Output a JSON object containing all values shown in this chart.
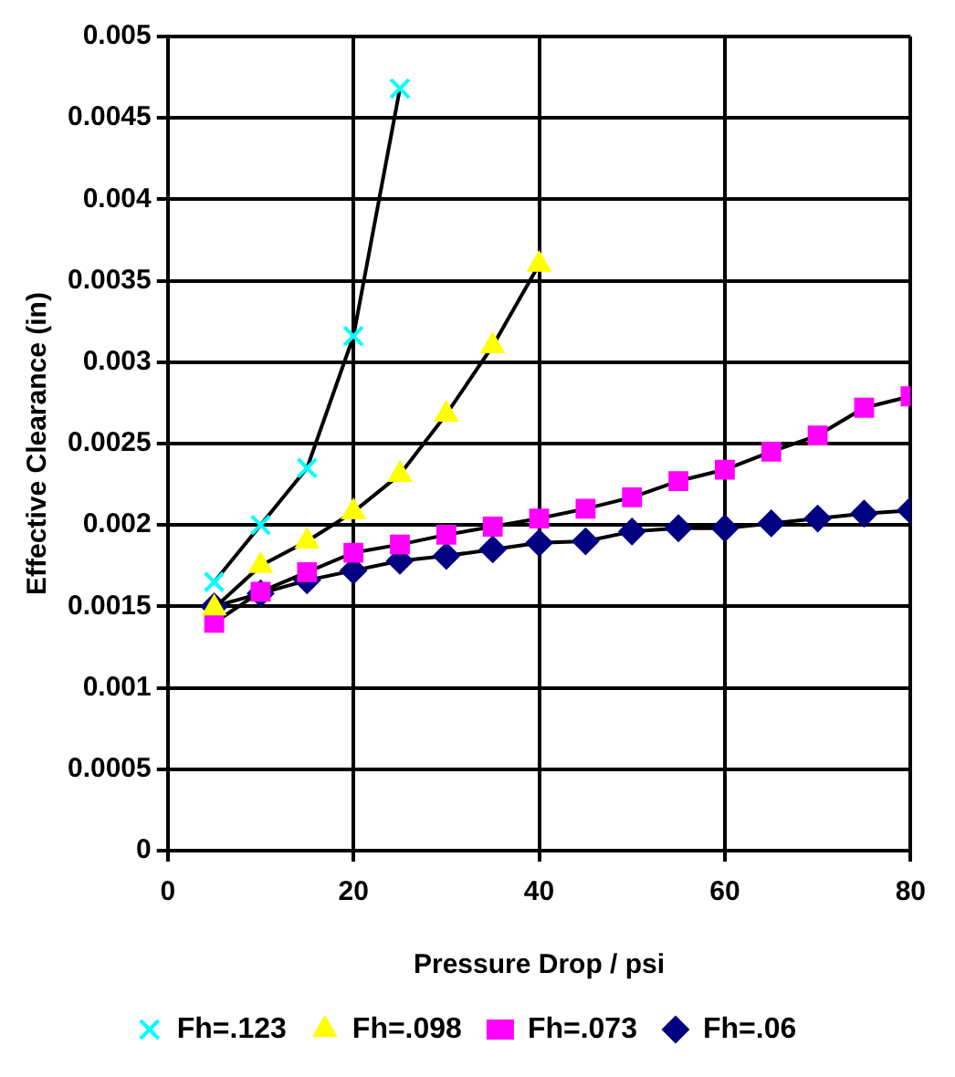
{
  "chart_data": {
    "type": "line",
    "xlabel": "Pressure Drop / psi",
    "ylabel": "Effective Clearance (in)",
    "xlim": [
      0,
      80
    ],
    "xticks": [
      0,
      20,
      40,
      60,
      80
    ],
    "ylim": [
      0,
      0.005
    ],
    "yticks": [
      0,
      0.0005,
      0.001,
      0.0015,
      0.002,
      0.0025,
      0.003,
      0.0035,
      0.004,
      0.0045,
      0.005
    ],
    "grid": true,
    "legend": "bottom",
    "line_style": "solid",
    "series": [
      {
        "name": "Fh=.06",
        "color": "#000080",
        "marker": "diamond",
        "x": [
          5,
          10,
          15,
          20,
          25,
          30,
          35,
          40,
          45,
          50,
          55,
          60,
          65,
          70,
          75,
          80
        ],
        "values": [
          0.0015,
          0.00158,
          0.00166,
          0.00172,
          0.00178,
          0.00181,
          0.00185,
          0.00189,
          0.0019,
          0.00196,
          0.00198,
          0.00198,
          0.00201,
          0.00204,
          0.00207,
          0.00209
        ]
      },
      {
        "name": "Fh=.073",
        "color": "#ff00ff",
        "marker": "square",
        "x": [
          5,
          10,
          15,
          20,
          25,
          30,
          35,
          40,
          45,
          50,
          55,
          60,
          65,
          70,
          75,
          80
        ],
        "values": [
          0.0014,
          0.00159,
          0.00171,
          0.00183,
          0.00188,
          0.00194,
          0.00199,
          0.00204,
          0.0021,
          0.00217,
          0.00227,
          0.00234,
          0.00245,
          0.00255,
          0.00272,
          0.00279
        ]
      },
      {
        "name": "Fh=.098",
        "color": "#ffff00",
        "marker": "triangle",
        "x": [
          5,
          10,
          15,
          20,
          25,
          30,
          35,
          40
        ],
        "values": [
          0.00149,
          0.00175,
          0.0019,
          0.00208,
          0.00231,
          0.00268,
          0.0031,
          0.0036
        ]
      },
      {
        "name": "Fh=.123",
        "color": "#00ffff",
        "marker": "cross",
        "x": [
          5,
          10,
          15,
          20,
          25
        ],
        "values": [
          0.00165,
          0.002,
          0.00235,
          0.00316,
          0.00468
        ]
      }
    ]
  }
}
